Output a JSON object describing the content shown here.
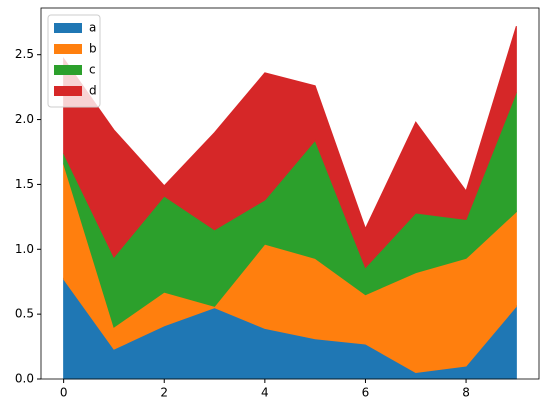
{
  "chart_data": {
    "type": "area",
    "stacked": true,
    "x": [
      0,
      1,
      2,
      3,
      4,
      5,
      6,
      7,
      8,
      9
    ],
    "series": [
      {
        "name": "a",
        "color": "#1f77b4",
        "values": [
          0.77,
          0.23,
          0.41,
          0.55,
          0.39,
          0.31,
          0.27,
          0.05,
          0.1,
          0.56
        ]
      },
      {
        "name": "b",
        "color": "#ff7f0e",
        "values": [
          0.89,
          0.17,
          0.26,
          0.01,
          0.65,
          0.62,
          0.38,
          0.77,
          0.83,
          0.73
        ]
      },
      {
        "name": "c",
        "color": "#2ca02c",
        "values": [
          0.08,
          0.54,
          0.74,
          0.59,
          0.34,
          0.91,
          0.21,
          0.46,
          0.3,
          0.92
        ]
      },
      {
        "name": "d",
        "color": "#d62728",
        "values": [
          0.73,
          0.98,
          0.08,
          0.75,
          0.98,
          0.42,
          0.3,
          0.7,
          0.22,
          0.51
        ]
      }
    ],
    "xlim": [
      -0.45,
      9.45
    ],
    "xticks": [
      0,
      2,
      4,
      6,
      8
    ],
    "ylim": [
      0,
      2.86
    ],
    "yticks": [
      {
        "value": 0,
        "label": "0.0"
      },
      0.5,
      {
        "value": 1,
        "label": "1.0"
      },
      1.5,
      {
        "value": 2,
        "label": "2.0"
      },
      2.5
    ],
    "legend": "upper left"
  }
}
